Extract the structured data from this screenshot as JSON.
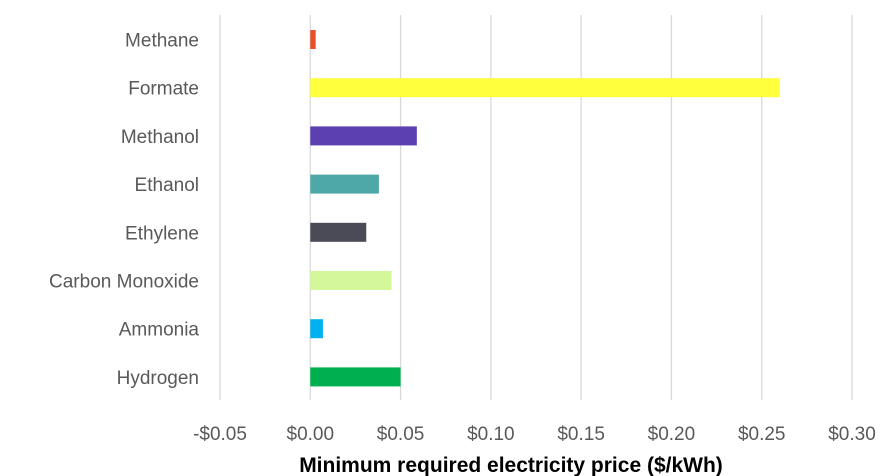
{
  "chart_data": {
    "type": "bar",
    "orientation": "horizontal",
    "title": "",
    "xlabel": "Minimum required electricity price ($/kWh)",
    "ylabel": "",
    "xlim": [
      -0.05,
      0.3
    ],
    "x_ticks": [
      -0.05,
      0.0,
      0.05,
      0.1,
      0.15,
      0.2,
      0.25,
      0.3
    ],
    "x_tick_labels": [
      "-$0.05",
      "$0.00",
      "$0.05",
      "$0.10",
      "$0.15",
      "$0.20",
      "$0.25",
      "$0.30"
    ],
    "grid": "vertical",
    "legend": "none",
    "categories": [
      "Methane",
      "Formate",
      "Methanol",
      "Ethanol",
      "Ethylene",
      "Carbon Monoxide",
      "Ammonia",
      "Hydrogen"
    ],
    "values": [
      0.003,
      0.26,
      0.059,
      0.038,
      0.031,
      0.045,
      0.007,
      0.05
    ],
    "colors": [
      "#e8502a",
      "#ffff3e",
      "#5c3fb0",
      "#4fa8a8",
      "#4b4b57",
      "#d4f79a",
      "#00b0f0",
      "#00b050"
    ]
  }
}
